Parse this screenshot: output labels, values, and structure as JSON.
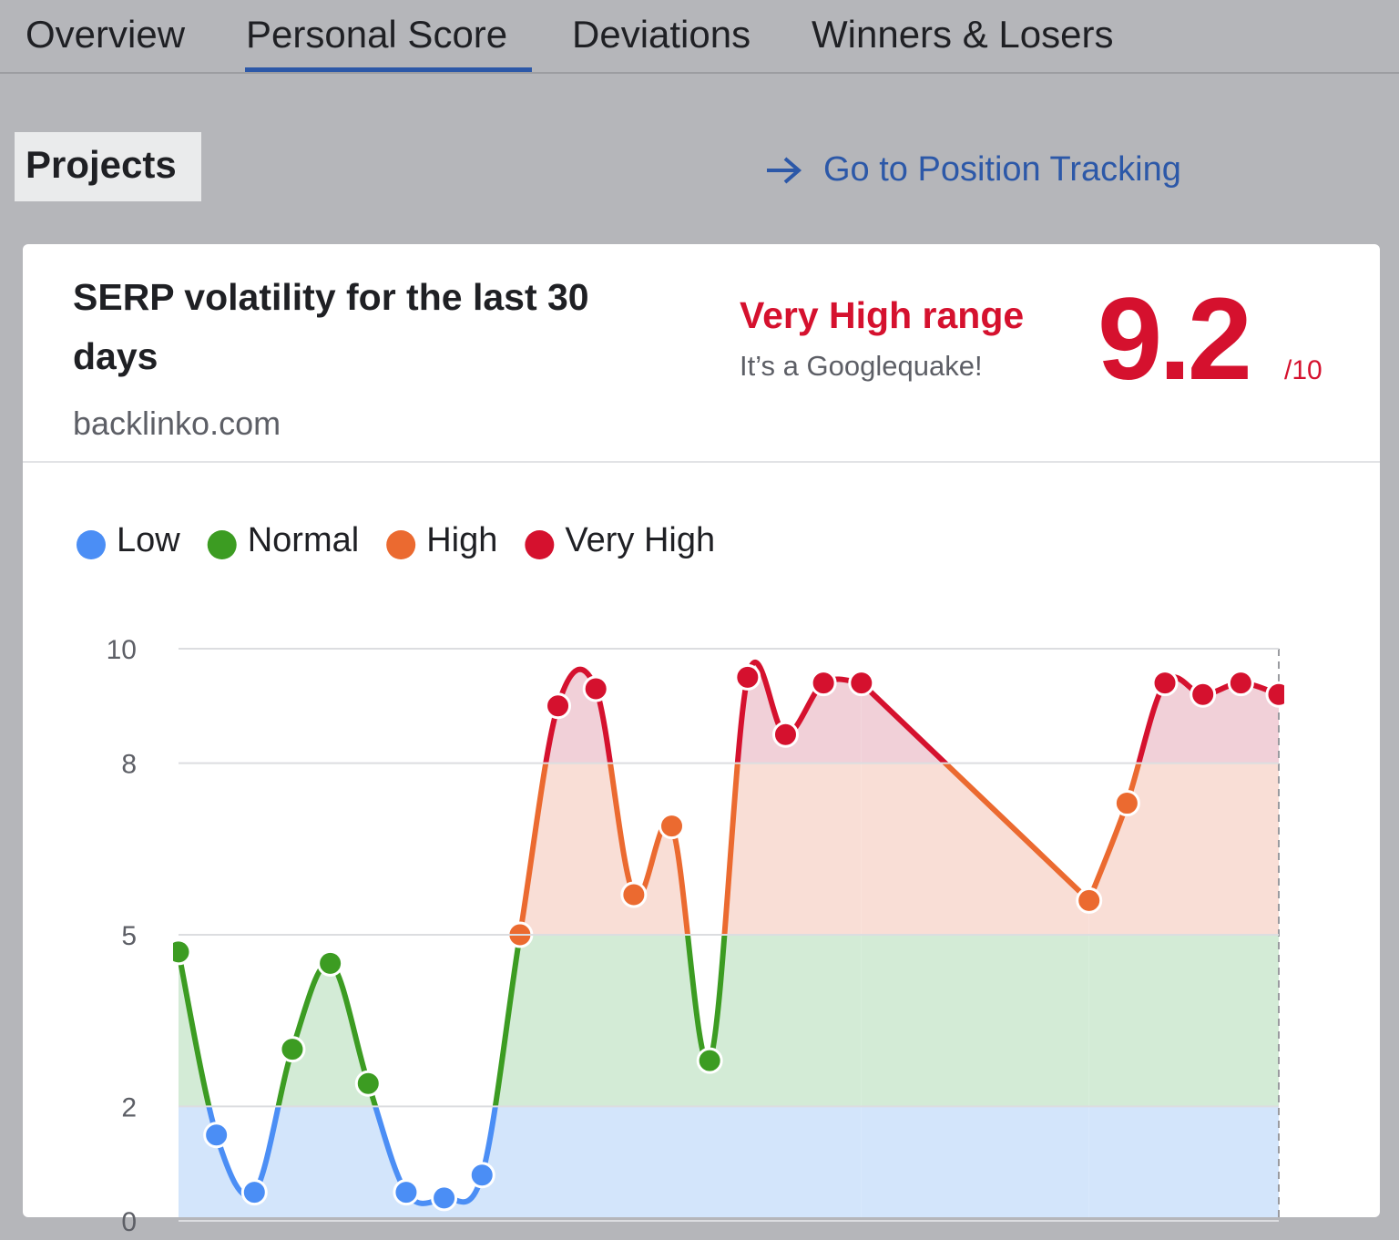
{
  "tabs": [
    "Overview",
    "Personal Score",
    "Deviations",
    "Winners & Losers"
  ],
  "projects_label": "Projects",
  "link": "Go to Position Tracking",
  "card": {
    "title_line1": "SERP volatility for the last 30",
    "title_line2": "days",
    "domain": "backlinko.com",
    "range_label": "Very High range",
    "range_note": "It’s a Googlequake!",
    "score": 9.2,
    "score_max": "/10"
  },
  "chart_data": {
    "type": "line",
    "categories": [
      null,
      null,
      null,
      null,
      null,
      null,
      null,
      null,
      null,
      null,
      null,
      null,
      null,
      null,
      null,
      null,
      null,
      null,
      null,
      null,
      null,
      null,
      null,
      null,
      null,
      null,
      null,
      null,
      null,
      null
    ],
    "values": [
      4.7,
      1.5,
      0.5,
      3.0,
      4.5,
      2.4,
      0.5,
      0.4,
      0.8,
      5.0,
      9.0,
      9.3,
      5.7,
      6.9,
      2.8,
      9.5,
      8.5,
      9.4,
      9.4,
      null,
      null,
      null,
      null,
      null,
      5.6,
      7.3,
      9.4,
      9.2,
      9.4,
      9.2
    ],
    "ylim": [
      0,
      10
    ],
    "yticks": [
      0,
      2,
      5,
      8,
      10
    ],
    "grid": true,
    "zones": [
      {
        "name": "Low",
        "color": "#4b8ef5",
        "fill": "#d3e5fb",
        "to": 2
      },
      {
        "name": "Normal",
        "color": "#3c9c22",
        "fill": "#d3ebd6",
        "to": 5
      },
      {
        "name": "High",
        "color": "#eb6a30",
        "fill": "#f9ded6",
        "to": 8
      },
      {
        "name": "Very High",
        "color": "#d5112e",
        "fill": "#f1d0d8",
        "to": 10
      }
    ]
  }
}
